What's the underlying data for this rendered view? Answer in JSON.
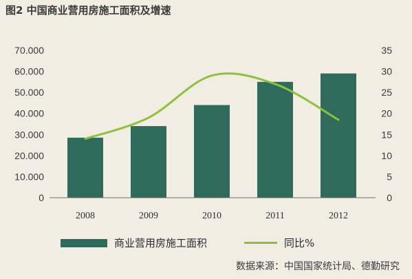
{
  "title": "图2  中国商业营用房施工面积及增速",
  "chart_data": {
    "type": "bar",
    "categories": [
      "2008",
      "2009",
      "2010",
      "2011",
      "2012"
    ],
    "series": [
      {
        "name": "商业营用房施工面积",
        "type": "bar",
        "axis": "left",
        "values": [
          28500,
          34000,
          44000,
          55000,
          59000
        ]
      },
      {
        "name": "同比%",
        "type": "line",
        "axis": "right",
        "values": [
          14,
          19,
          29,
          27,
          18.5
        ]
      }
    ],
    "left_axis": {
      "ticks": [
        "0",
        "10.000",
        "20.000",
        "30.000",
        "40.000",
        "50.000",
        "60.000",
        "70.000"
      ],
      "ylim": [
        0,
        70000
      ]
    },
    "right_axis": {
      "ticks": [
        "0",
        "5",
        "10",
        "15",
        "20",
        "25",
        "30",
        "35"
      ],
      "ylim": [
        0,
        35
      ]
    },
    "grid": false,
    "legend_position": "bottom"
  },
  "colors": {
    "bar": "#2f6b5a",
    "line": "#8fbf3f",
    "background": "#f1ede2"
  },
  "source": "数据来源：中国国家统计局、德勤研究"
}
